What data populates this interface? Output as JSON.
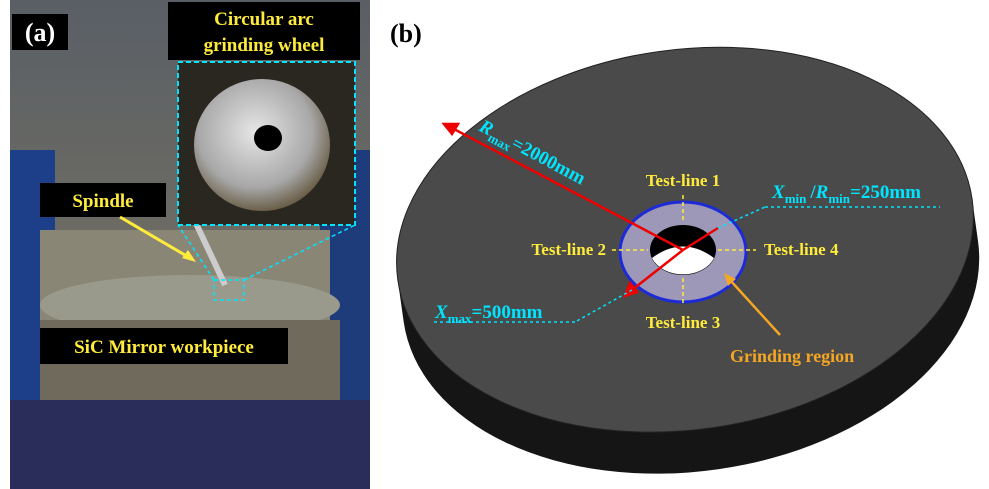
{
  "panel_a": {
    "label": "(a)",
    "wheel_label": [
      "Circular arc",
      "grinding wheel"
    ],
    "spindle_label": "Spindle",
    "workpiece_label": "SiC Mirror workpiece"
  },
  "panel_b": {
    "label": "(b)",
    "r_max": {
      "symbol": "R",
      "subscript": "max",
      "text": "=2000mm"
    },
    "x_min_r_min": {
      "x_symbol": "X",
      "x_subscript": "min",
      "separator": "/",
      "r_symbol": "R",
      "r_subscript": "min",
      "text": "=250mm"
    },
    "test_lines": [
      "Test-line 1",
      "Test-line 2",
      "Test-line 3",
      "Test-line 4"
    ],
    "x_max": {
      "symbol": "X",
      "subscript": "max",
      "text": "=500mm"
    },
    "grinding_region": "Grinding region"
  }
}
